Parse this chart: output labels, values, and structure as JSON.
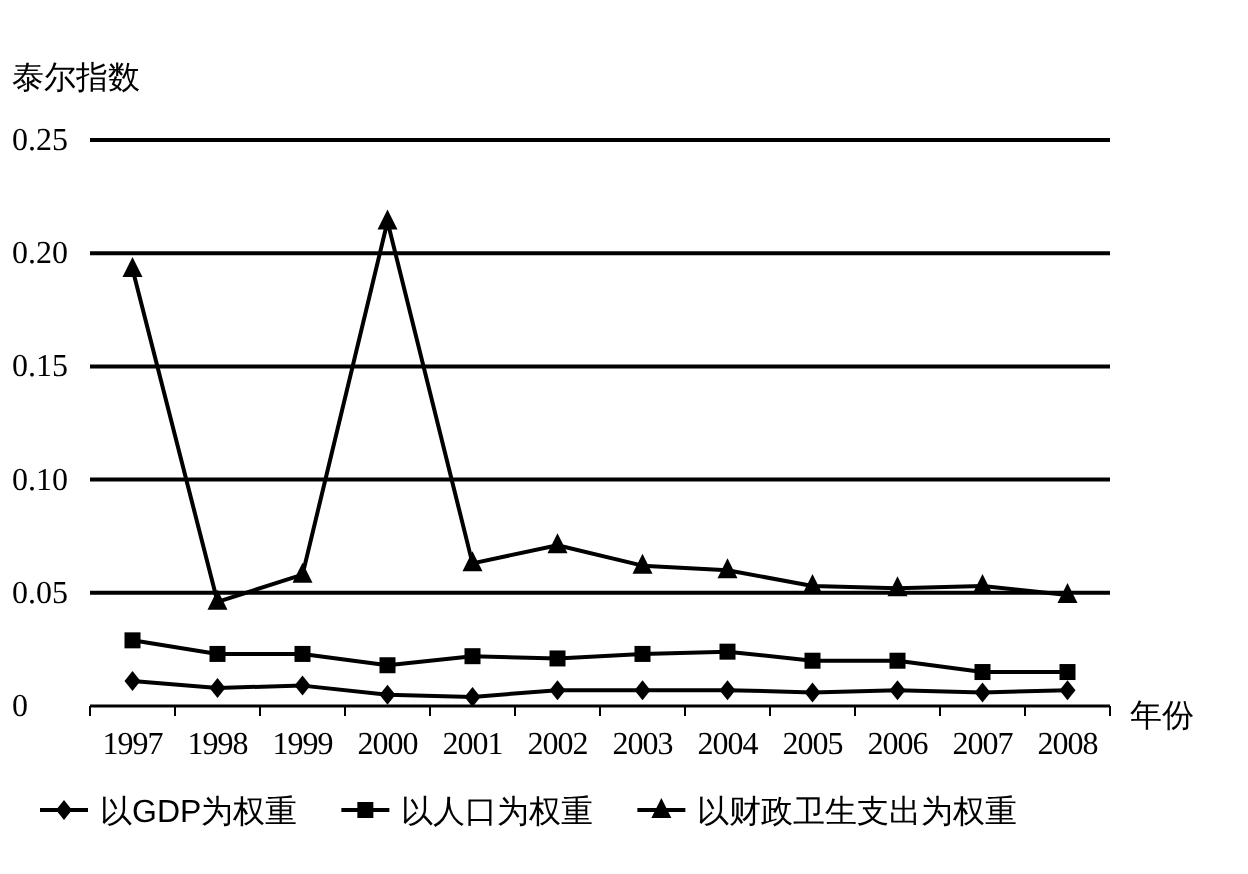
{
  "chart_data": {
    "type": "line",
    "ylabel": "泰尔指数",
    "xlabel": "年份",
    "categories": [
      "1997",
      "1998",
      "1999",
      "2000",
      "2001",
      "2002",
      "2003",
      "2004",
      "2005",
      "2006",
      "2007",
      "2008"
    ],
    "ylim": [
      0,
      0.25
    ],
    "yticks": [
      0,
      0.05,
      {
        "value": 0.1,
        "label": "0.10"
      },
      0.15,
      {
        "value": 0.2,
        "label": "0.20"
      },
      0.25
    ],
    "grid": "y",
    "legend": "bottom",
    "series": [
      {
        "name": "以GDP为权重",
        "color": "#000000",
        "marker": "diamond",
        "values": [
          0.011,
          0.008,
          0.009,
          0.005,
          0.004,
          0.007,
          0.007,
          0.007,
          0.006,
          0.007,
          0.006,
          0.007
        ]
      },
      {
        "name": "以人口为权重",
        "color": "#000000",
        "marker": "square",
        "values": [
          0.029,
          0.023,
          0.023,
          0.018,
          0.022,
          0.021,
          0.023,
          0.024,
          0.02,
          0.02,
          0.015,
          0.015
        ]
      },
      {
        "name": "以财政卫生支出为权重",
        "color": "#000000",
        "marker": "triangle",
        "values": [
          0.193,
          0.046,
          0.058,
          0.214,
          0.063,
          0.071,
          0.062,
          0.06,
          0.053,
          0.052,
          0.053,
          0.049
        ]
      }
    ]
  }
}
